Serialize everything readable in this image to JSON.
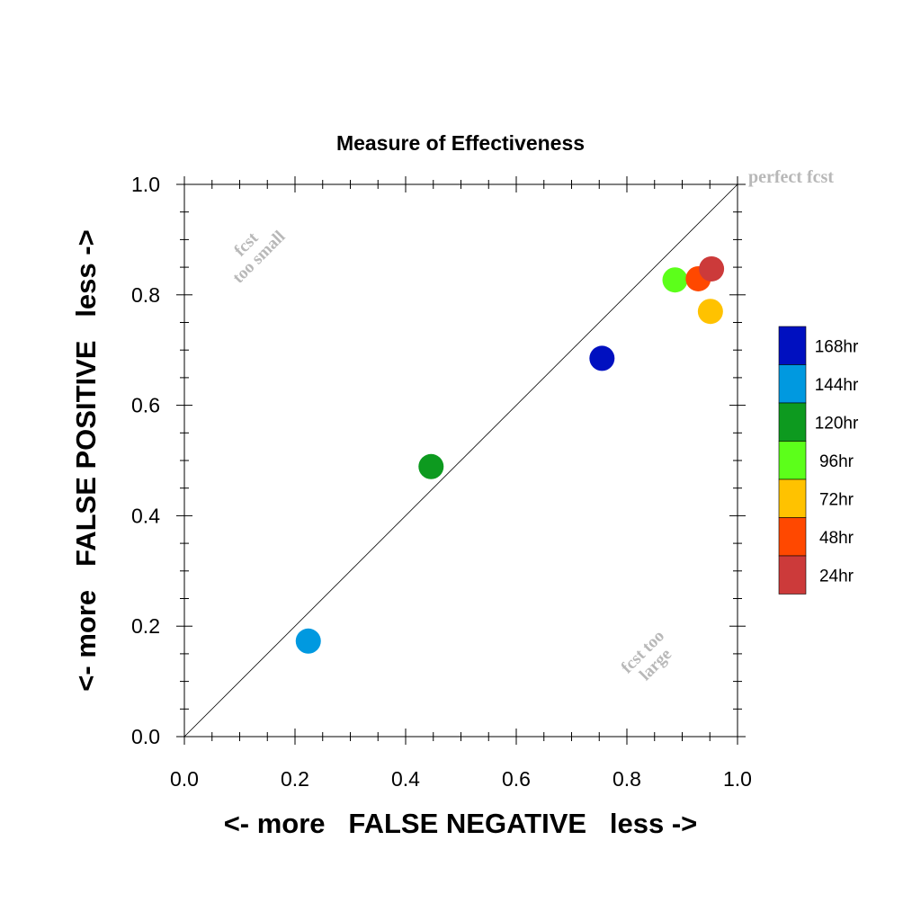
{
  "chart_data": {
    "type": "scatter",
    "title": "Measure of Effectiveness",
    "xlabel": "<- more   FALSE NEGATIVE   less ->",
    "ylabel": "<- more   FALSE POSITIVE   less ->",
    "xlim": [
      0.0,
      1.0
    ],
    "ylim": [
      0.0,
      1.0
    ],
    "xticks": [
      "0.0",
      "0.2",
      "0.4",
      "0.6",
      "0.8",
      "1.0"
    ],
    "yticks": [
      "0.0",
      "0.2",
      "0.4",
      "0.6",
      "0.8",
      "1.0"
    ],
    "grid": false,
    "reference_line": "diagonal y = x",
    "annotations": {
      "perfect": "perfect fcst",
      "too_small_line1": "fcst",
      "too_small_line2": "too small",
      "too_large_line1": "fcst too",
      "too_large_line2": "large"
    },
    "legend_position": "right",
    "series": [
      {
        "name": "168hr",
        "color": "#0010c0",
        "x": 0.755,
        "y": 0.685
      },
      {
        "name": "144hr",
        "color": "#0099e0",
        "x": 0.224,
        "y": 0.173
      },
      {
        "name": "120hr",
        "color": "#0d9a1f",
        "x": 0.446,
        "y": 0.489
      },
      {
        "name": "96hr",
        "color": "#5cff1a",
        "x": 0.887,
        "y": 0.827
      },
      {
        "name": "72hr",
        "color": "#ffc200",
        "x": 0.951,
        "y": 0.77
      },
      {
        "name": "48hr",
        "color": "#ff4800",
        "x": 0.929,
        "y": 0.829
      },
      {
        "name": "24hr",
        "color": "#cc3a3a",
        "x": 0.953,
        "y": 0.847
      }
    ]
  }
}
